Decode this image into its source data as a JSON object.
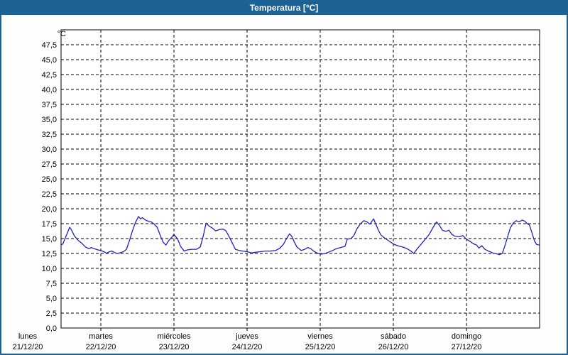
{
  "window": {
    "title": "Temperatura [°C]"
  },
  "colors": {
    "titlebar": "#1d6295",
    "frame": "#1d6295",
    "plot_background": "#ffffff",
    "page_background": "#fdfefd",
    "gridline": "#000000",
    "series_line": "#2020c0"
  },
  "chart_data": {
    "type": "line",
    "title": "Temperatura [°C]",
    "ylabel_unit": "°C",
    "ylim": [
      0,
      50
    ],
    "ytick_step": 2.5,
    "decimal_separator": ",",
    "ytick_labels": [
      "0,0",
      "2,5",
      "5,0",
      "7,5",
      "10,0",
      "12,5",
      "15,0",
      "17,5",
      "20,0",
      "22,5",
      "25,0",
      "27,5",
      "30,0",
      "32,5",
      "35,0",
      "37,5",
      "40,0",
      "42,5",
      "45,0",
      "47,5"
    ],
    "grid": true,
    "legend": "none",
    "x_axis": {
      "unit": "days",
      "x_range_days": [
        0.456,
        7
      ],
      "days": [
        {
          "label": "lunes",
          "date": "21/12/20"
        },
        {
          "label": "martes",
          "date": "22/12/20"
        },
        {
          "label": "miércoles",
          "date": "23/12/20"
        },
        {
          "label": "jueves",
          "date": "24/12/20"
        },
        {
          "label": "viernes",
          "date": "25/12/20"
        },
        {
          "label": "sábado",
          "date": "26/12/20"
        },
        {
          "label": "domingo",
          "date": "27/12/20"
        }
      ]
    },
    "series": [
      {
        "name": "Temperatura",
        "color": "#2020c0",
        "points": [
          [
            0.456,
            13.9
          ],
          [
            0.48,
            14.1
          ],
          [
            0.51,
            15.0
          ],
          [
            0.544,
            16.0
          ],
          [
            0.573,
            16.9
          ],
          [
            0.6,
            16.4
          ],
          [
            0.64,
            15.4
          ],
          [
            0.69,
            14.7
          ],
          [
            0.74,
            14.2
          ],
          [
            0.79,
            13.6
          ],
          [
            0.835,
            13.3
          ],
          [
            0.87,
            13.5
          ],
          [
            0.91,
            13.3
          ],
          [
            0.96,
            13.1
          ],
          [
            1.0,
            13.0
          ],
          [
            1.04,
            12.8
          ],
          [
            1.08,
            12.55
          ],
          [
            1.12,
            12.8
          ],
          [
            1.15,
            12.9
          ],
          [
            1.18,
            12.7
          ],
          [
            1.22,
            12.5
          ],
          [
            1.26,
            12.6
          ],
          [
            1.31,
            12.8
          ],
          [
            1.35,
            13.2
          ],
          [
            1.39,
            14.6
          ],
          [
            1.43,
            16.2
          ],
          [
            1.47,
            17.6
          ],
          [
            1.515,
            18.7
          ],
          [
            1.54,
            18.3
          ],
          [
            1.57,
            18.5
          ],
          [
            1.61,
            18.1
          ],
          [
            1.65,
            17.9
          ],
          [
            1.69,
            17.8
          ],
          [
            1.73,
            17.4
          ],
          [
            1.77,
            16.9
          ],
          [
            1.81,
            15.6
          ],
          [
            1.85,
            14.4
          ],
          [
            1.89,
            13.9
          ],
          [
            1.93,
            14.7
          ],
          [
            1.97,
            15.2
          ],
          [
            2.0,
            15.7
          ],
          [
            2.05,
            14.9
          ],
          [
            2.09,
            13.7
          ],
          [
            2.14,
            12.9
          ],
          [
            2.18,
            13.1
          ],
          [
            2.24,
            13.2
          ],
          [
            2.31,
            13.2
          ],
          [
            2.36,
            13.6
          ],
          [
            2.4,
            15.4
          ],
          [
            2.44,
            17.6
          ],
          [
            2.48,
            17.1
          ],
          [
            2.52,
            16.8
          ],
          [
            2.57,
            16.3
          ],
          [
            2.62,
            16.5
          ],
          [
            2.67,
            16.6
          ],
          [
            2.71,
            16.3
          ],
          [
            2.75,
            15.4
          ],
          [
            2.8,
            14.2
          ],
          [
            2.84,
            13.2
          ],
          [
            2.89,
            13.0
          ],
          [
            2.94,
            12.9
          ],
          [
            3.0,
            12.8
          ],
          [
            3.06,
            12.6
          ],
          [
            3.12,
            12.7
          ],
          [
            3.18,
            12.8
          ],
          [
            3.25,
            12.9
          ],
          [
            3.32,
            12.9
          ],
          [
            3.39,
            13.0
          ],
          [
            3.45,
            13.4
          ],
          [
            3.5,
            14.1
          ],
          [
            3.54,
            15.0
          ],
          [
            3.58,
            15.8
          ],
          [
            3.61,
            15.4
          ],
          [
            3.64,
            14.6
          ],
          [
            3.68,
            13.6
          ],
          [
            3.74,
            13.0
          ],
          [
            3.79,
            13.2
          ],
          [
            3.83,
            13.5
          ],
          [
            3.87,
            13.3
          ],
          [
            3.92,
            12.8
          ],
          [
            3.97,
            12.5
          ],
          [
            4.01,
            12.4
          ],
          [
            4.06,
            12.45
          ],
          [
            4.11,
            12.7
          ],
          [
            4.17,
            13.0
          ],
          [
            4.22,
            13.3
          ],
          [
            4.28,
            13.5
          ],
          [
            4.34,
            13.7
          ],
          [
            4.37,
            14.9
          ],
          [
            4.42,
            15.0
          ],
          [
            4.46,
            15.5
          ],
          [
            4.5,
            16.6
          ],
          [
            4.55,
            17.5
          ],
          [
            4.6,
            18.0
          ],
          [
            4.64,
            17.8
          ],
          [
            4.68,
            17.4
          ],
          [
            4.73,
            18.3
          ],
          [
            4.76,
            17.4
          ],
          [
            4.8,
            16.3
          ],
          [
            4.83,
            15.6
          ],
          [
            4.88,
            15.1
          ],
          [
            4.94,
            14.6
          ],
          [
            5.0,
            14.1
          ],
          [
            5.06,
            13.8
          ],
          [
            5.12,
            13.6
          ],
          [
            5.17,
            13.4
          ],
          [
            5.2,
            13.2
          ],
          [
            5.24,
            12.9
          ],
          [
            5.28,
            12.5
          ],
          [
            5.32,
            13.2
          ],
          [
            5.37,
            13.9
          ],
          [
            5.43,
            14.8
          ],
          [
            5.49,
            15.7
          ],
          [
            5.54,
            16.8
          ],
          [
            5.59,
            17.8
          ],
          [
            5.63,
            17.2
          ],
          [
            5.67,
            16.4
          ],
          [
            5.72,
            16.2
          ],
          [
            5.76,
            16.4
          ],
          [
            5.8,
            15.7
          ],
          [
            5.84,
            15.4
          ],
          [
            5.9,
            15.3
          ],
          [
            5.95,
            15.5
          ],
          [
            6.0,
            14.9
          ],
          [
            6.05,
            14.5
          ],
          [
            6.1,
            14.1
          ],
          [
            6.14,
            13.9
          ],
          [
            6.17,
            13.4
          ],
          [
            6.21,
            13.8
          ],
          [
            6.25,
            13.2
          ],
          [
            6.3,
            12.9
          ],
          [
            6.36,
            12.6
          ],
          [
            6.41,
            12.45
          ],
          [
            6.45,
            12.3
          ],
          [
            6.49,
            12.5
          ],
          [
            6.52,
            13.6
          ],
          [
            6.56,
            15.2
          ],
          [
            6.6,
            16.8
          ],
          [
            6.64,
            17.6
          ],
          [
            6.68,
            18.0
          ],
          [
            6.72,
            17.8
          ],
          [
            6.76,
            18.1
          ],
          [
            6.8,
            17.9
          ],
          [
            6.83,
            17.5
          ],
          [
            6.86,
            17.3
          ],
          [
            6.9,
            15.8
          ],
          [
            6.93,
            14.6
          ],
          [
            6.96,
            14.0
          ],
          [
            7.0,
            13.9
          ]
        ]
      }
    ]
  }
}
